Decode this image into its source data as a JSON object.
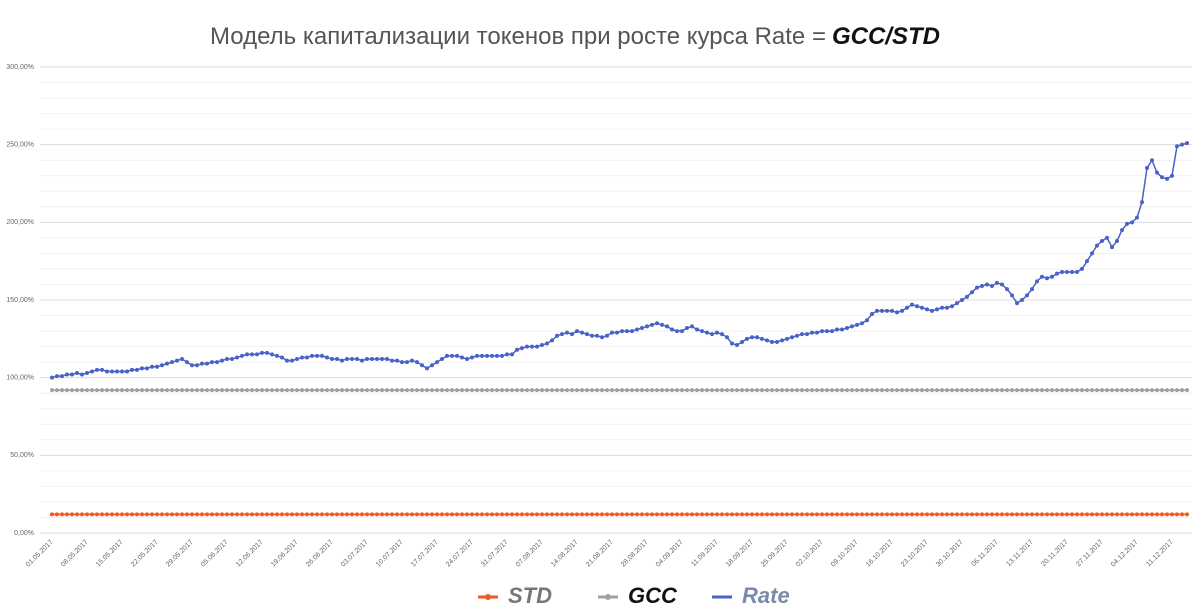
{
  "chart_data": {
    "type": "line",
    "title": "Модель капитализации токенов при росте курса Rate =",
    "title_emphasis": "GCC/STD",
    "categories": [
      "01.05.2017",
      null,
      null,
      null,
      null,
      null,
      null,
      "08.05.2017",
      null,
      null,
      null,
      null,
      null,
      null,
      "15.05.2017",
      null,
      null,
      null,
      null,
      null,
      null,
      "22.05.2017",
      null,
      null,
      null,
      null,
      null,
      null,
      "29.05.2017",
      null,
      null,
      null,
      null,
      null,
      null,
      "05.06.2017",
      null,
      null,
      null,
      null,
      null,
      null,
      "12.06.2017",
      null,
      null,
      null,
      null,
      null,
      null,
      "19.06.2017",
      null,
      null,
      null,
      null,
      null,
      null,
      "26.06.2017",
      null,
      null,
      null,
      null,
      null,
      null,
      "03.07.2017",
      null,
      null,
      null,
      null,
      null,
      null,
      "10.07.2017",
      null,
      null,
      null,
      null,
      null,
      null,
      "17.07.2017",
      null,
      null,
      null,
      null,
      null,
      null,
      "24.07.2017",
      null,
      null,
      null,
      null,
      null,
      null,
      "31.07.2017",
      null,
      null,
      null,
      null,
      null,
      null,
      "07.08.2017",
      null,
      null,
      null,
      null,
      null,
      null,
      "14.08.2017",
      null,
      null,
      null,
      null,
      null,
      null,
      "21.08.2017",
      null,
      null,
      null,
      null,
      null,
      null,
      "28.08.2017",
      null,
      null,
      null,
      null,
      null,
      null,
      "04.09.2017",
      null,
      null,
      null,
      null,
      null,
      null,
      "11.09.2017",
      null,
      null,
      null,
      null,
      null,
      null,
      "18.09.2017",
      null,
      null,
      null,
      null,
      null,
      null,
      "25.09.2017",
      null,
      null,
      null,
      null,
      null,
      null,
      "02.10.2017",
      null,
      null,
      null,
      null,
      null,
      null,
      "09.10.2017",
      null,
      null,
      null,
      null,
      null,
      null,
      "16.10.2017",
      null,
      null,
      null,
      null,
      null,
      null,
      "23.10.2017",
      null,
      null,
      null,
      null,
      null,
      null,
      "30.10.2017",
      null,
      null,
      null,
      null,
      null,
      null,
      "06.11.2017",
      null,
      null,
      null,
      null,
      null,
      null,
      "13.11.2017",
      null,
      null,
      null,
      null,
      null,
      null,
      "20.11.2017",
      null,
      null,
      null,
      null,
      null,
      null,
      "27.11.2017",
      null,
      null,
      null,
      null,
      null,
      null,
      "04.12.2017",
      null,
      null,
      null,
      null,
      null,
      null,
      "11.12.2017",
      null,
      null,
      null
    ],
    "series": [
      {
        "name": "STD",
        "color": "#f05a22",
        "values": [
          12,
          12,
          12,
          12,
          12,
          12,
          12,
          12,
          12,
          12,
          12,
          12,
          12,
          12,
          12,
          12,
          12,
          12,
          12,
          12,
          12,
          12,
          12,
          12,
          12,
          12,
          12,
          12,
          12,
          12,
          12,
          12,
          12,
          12,
          12,
          12,
          12,
          12,
          12,
          12,
          12,
          12,
          12,
          12,
          12,
          12,
          12,
          12,
          12,
          12,
          12,
          12,
          12,
          12,
          12,
          12,
          12,
          12,
          12,
          12,
          12,
          12,
          12,
          12,
          12,
          12,
          12,
          12,
          12,
          12,
          12,
          12,
          12,
          12,
          12,
          12,
          12,
          12,
          12,
          12,
          12,
          12,
          12,
          12,
          12,
          12,
          12,
          12,
          12,
          12,
          12,
          12,
          12,
          12,
          12,
          12,
          12,
          12,
          12,
          12,
          12,
          12,
          12,
          12,
          12,
          12,
          12,
          12,
          12,
          12,
          12,
          12,
          12,
          12,
          12,
          12,
          12,
          12,
          12,
          12,
          12,
          12,
          12,
          12,
          12,
          12,
          12,
          12,
          12,
          12,
          12,
          12,
          12,
          12,
          12,
          12,
          12,
          12,
          12,
          12,
          12,
          12,
          12,
          12,
          12,
          12,
          12,
          12,
          12,
          12,
          12,
          12,
          12,
          12,
          12,
          12,
          12,
          12,
          12,
          12,
          12,
          12,
          12,
          12,
          12,
          12,
          12,
          12,
          12,
          12,
          12,
          12,
          12,
          12,
          12,
          12,
          12,
          12,
          12,
          12,
          12,
          12,
          12,
          12,
          12,
          12,
          12,
          12,
          12,
          12,
          12,
          12,
          12,
          12,
          12,
          12,
          12,
          12,
          12,
          12,
          12,
          12,
          12,
          12,
          12,
          12,
          12,
          12,
          12,
          12,
          12,
          12,
          12,
          12,
          12,
          12,
          12,
          12,
          12,
          12,
          12,
          12,
          12,
          12,
          12,
          12,
          12,
          12
        ]
      },
      {
        "name": "GCC",
        "color": "#a0a0a0",
        "values": [
          92,
          92,
          92,
          92,
          92,
          92,
          92,
          92,
          92,
          92,
          92,
          92,
          92,
          92,
          92,
          92,
          92,
          92,
          92,
          92,
          92,
          92,
          92,
          92,
          92,
          92,
          92,
          92,
          92,
          92,
          92,
          92,
          92,
          92,
          92,
          92,
          92,
          92,
          92,
          92,
          92,
          92,
          92,
          92,
          92,
          92,
          92,
          92,
          92,
          92,
          92,
          92,
          92,
          92,
          92,
          92,
          92,
          92,
          92,
          92,
          92,
          92,
          92,
          92,
          92,
          92,
          92,
          92,
          92,
          92,
          92,
          92,
          92,
          92,
          92,
          92,
          92,
          92,
          92,
          92,
          92,
          92,
          92,
          92,
          92,
          92,
          92,
          92,
          92,
          92,
          92,
          92,
          92,
          92,
          92,
          92,
          92,
          92,
          92,
          92,
          92,
          92,
          92,
          92,
          92,
          92,
          92,
          92,
          92,
          92,
          92,
          92,
          92,
          92,
          92,
          92,
          92,
          92,
          92,
          92,
          92,
          92,
          92,
          92,
          92,
          92,
          92,
          92,
          92,
          92,
          92,
          92,
          92,
          92,
          92,
          92,
          92,
          92,
          92,
          92,
          92,
          92,
          92,
          92,
          92,
          92,
          92,
          92,
          92,
          92,
          92,
          92,
          92,
          92,
          92,
          92,
          92,
          92,
          92,
          92,
          92,
          92,
          92,
          92,
          92,
          92,
          92,
          92,
          92,
          92,
          92,
          92,
          92,
          92,
          92,
          92,
          92,
          92,
          92,
          92,
          92,
          92,
          92,
          92,
          92,
          92,
          92,
          92,
          92,
          92,
          92,
          92,
          92,
          92,
          92,
          92,
          92,
          92,
          92,
          92,
          92,
          92,
          92,
          92,
          92,
          92,
          92,
          92,
          92,
          92,
          92,
          92,
          92,
          92,
          92,
          92,
          92,
          92,
          92,
          92,
          92,
          92,
          92,
          92,
          92,
          92,
          92,
          92
        ]
      },
      {
        "name": "Rate",
        "color": "#4a62c8",
        "values": [
          100,
          101,
          101,
          102,
          102,
          103,
          102,
          103,
          104,
          105,
          105,
          104,
          104,
          104,
          104,
          104,
          105,
          105,
          106,
          106,
          107,
          107,
          108,
          109,
          110,
          111,
          112,
          110,
          108,
          108,
          109,
          109,
          110,
          110,
          111,
          112,
          112,
          113,
          114,
          115,
          115,
          115,
          116,
          116,
          115,
          114,
          113,
          111,
          111,
          112,
          113,
          113,
          114,
          114,
          114,
          113,
          112,
          112,
          111,
          112,
          112,
          112,
          111,
          112,
          112,
          112,
          112,
          112,
          111,
          111,
          110,
          110,
          111,
          110,
          108,
          106,
          108,
          110,
          112,
          114,
          114,
          114,
          113,
          112,
          113,
          114,
          114,
          114,
          114,
          114,
          114,
          115,
          115,
          118,
          119,
          120,
          120,
          120,
          121,
          122,
          124,
          127,
          128,
          129,
          128,
          130,
          129,
          128,
          127,
          127,
          126,
          127,
          129,
          129,
          130,
          130,
          130,
          131,
          132,
          133,
          134,
          135,
          134,
          133,
          131,
          130,
          130,
          132,
          133,
          131,
          130,
          129,
          128,
          129,
          128,
          126,
          122,
          121,
          123,
          125,
          126,
          126,
          125,
          124,
          123,
          123,
          124,
          125,
          126,
          127,
          128,
          128,
          129,
          129,
          130,
          130,
          130,
          131,
          131,
          132,
          133,
          134,
          135,
          137,
          141,
          143,
          143,
          143,
          143,
          142,
          143,
          145,
          147,
          146,
          145,
          144,
          143,
          144,
          145,
          145,
          146,
          148,
          150,
          152,
          155,
          158,
          159,
          160,
          159,
          161,
          160,
          157,
          153,
          148,
          150,
          153,
          157,
          162,
          165,
          164,
          165,
          167,
          168,
          168,
          168,
          168,
          170,
          175,
          180,
          185,
          188,
          190,
          184,
          188,
          195,
          199,
          200,
          203,
          213,
          235,
          240,
          232,
          229,
          228,
          230,
          249,
          250,
          251
        ]
      }
    ],
    "ylim": [
      0,
      300
    ],
    "yticks": [
      {
        "value": 0,
        "label": "0,00%"
      },
      {
        "value": 50,
        "label": "50,00%"
      },
      {
        "value": 100,
        "label": "100,00%"
      },
      {
        "value": 150,
        "label": "150,00%"
      },
      {
        "value": 200,
        "label": "200,00%"
      },
      {
        "value": 250,
        "label": "250,00%"
      },
      {
        "value": 300,
        "label": "300,00%"
      }
    ],
    "minor_yticks": [
      10,
      20,
      30,
      40,
      60,
      70,
      80,
      90,
      110,
      120,
      130,
      140,
      160,
      170,
      180,
      190,
      210,
      220,
      230,
      240,
      260,
      270,
      280,
      290
    ],
    "grid": true,
    "legend": "bottom"
  }
}
